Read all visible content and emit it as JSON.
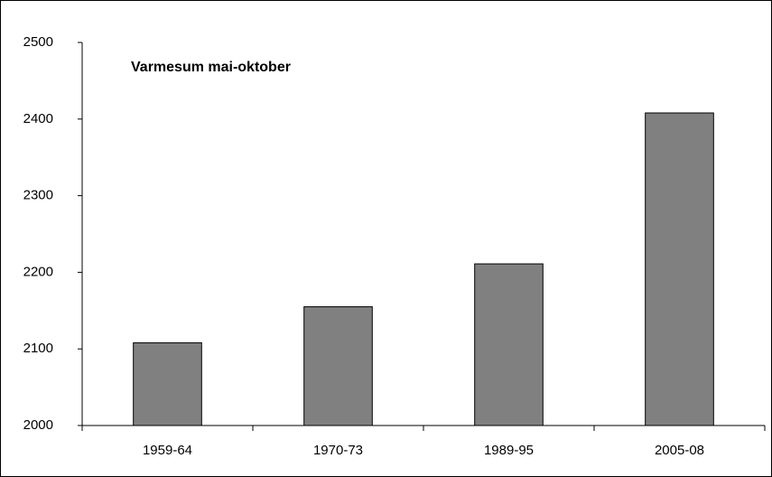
{
  "chart_data": {
    "type": "bar",
    "title": "Varmesum mai-oktober",
    "categories": [
      "1959-64",
      "1970-73",
      "1989-95",
      "2005-08"
    ],
    "values": [
      2108,
      2155,
      2211,
      2408
    ],
    "color": "#808080",
    "ylim": [
      2000,
      2500
    ],
    "yticks": [
      2000,
      2100,
      2200,
      2300,
      2400,
      2500
    ],
    "grid": false
  }
}
